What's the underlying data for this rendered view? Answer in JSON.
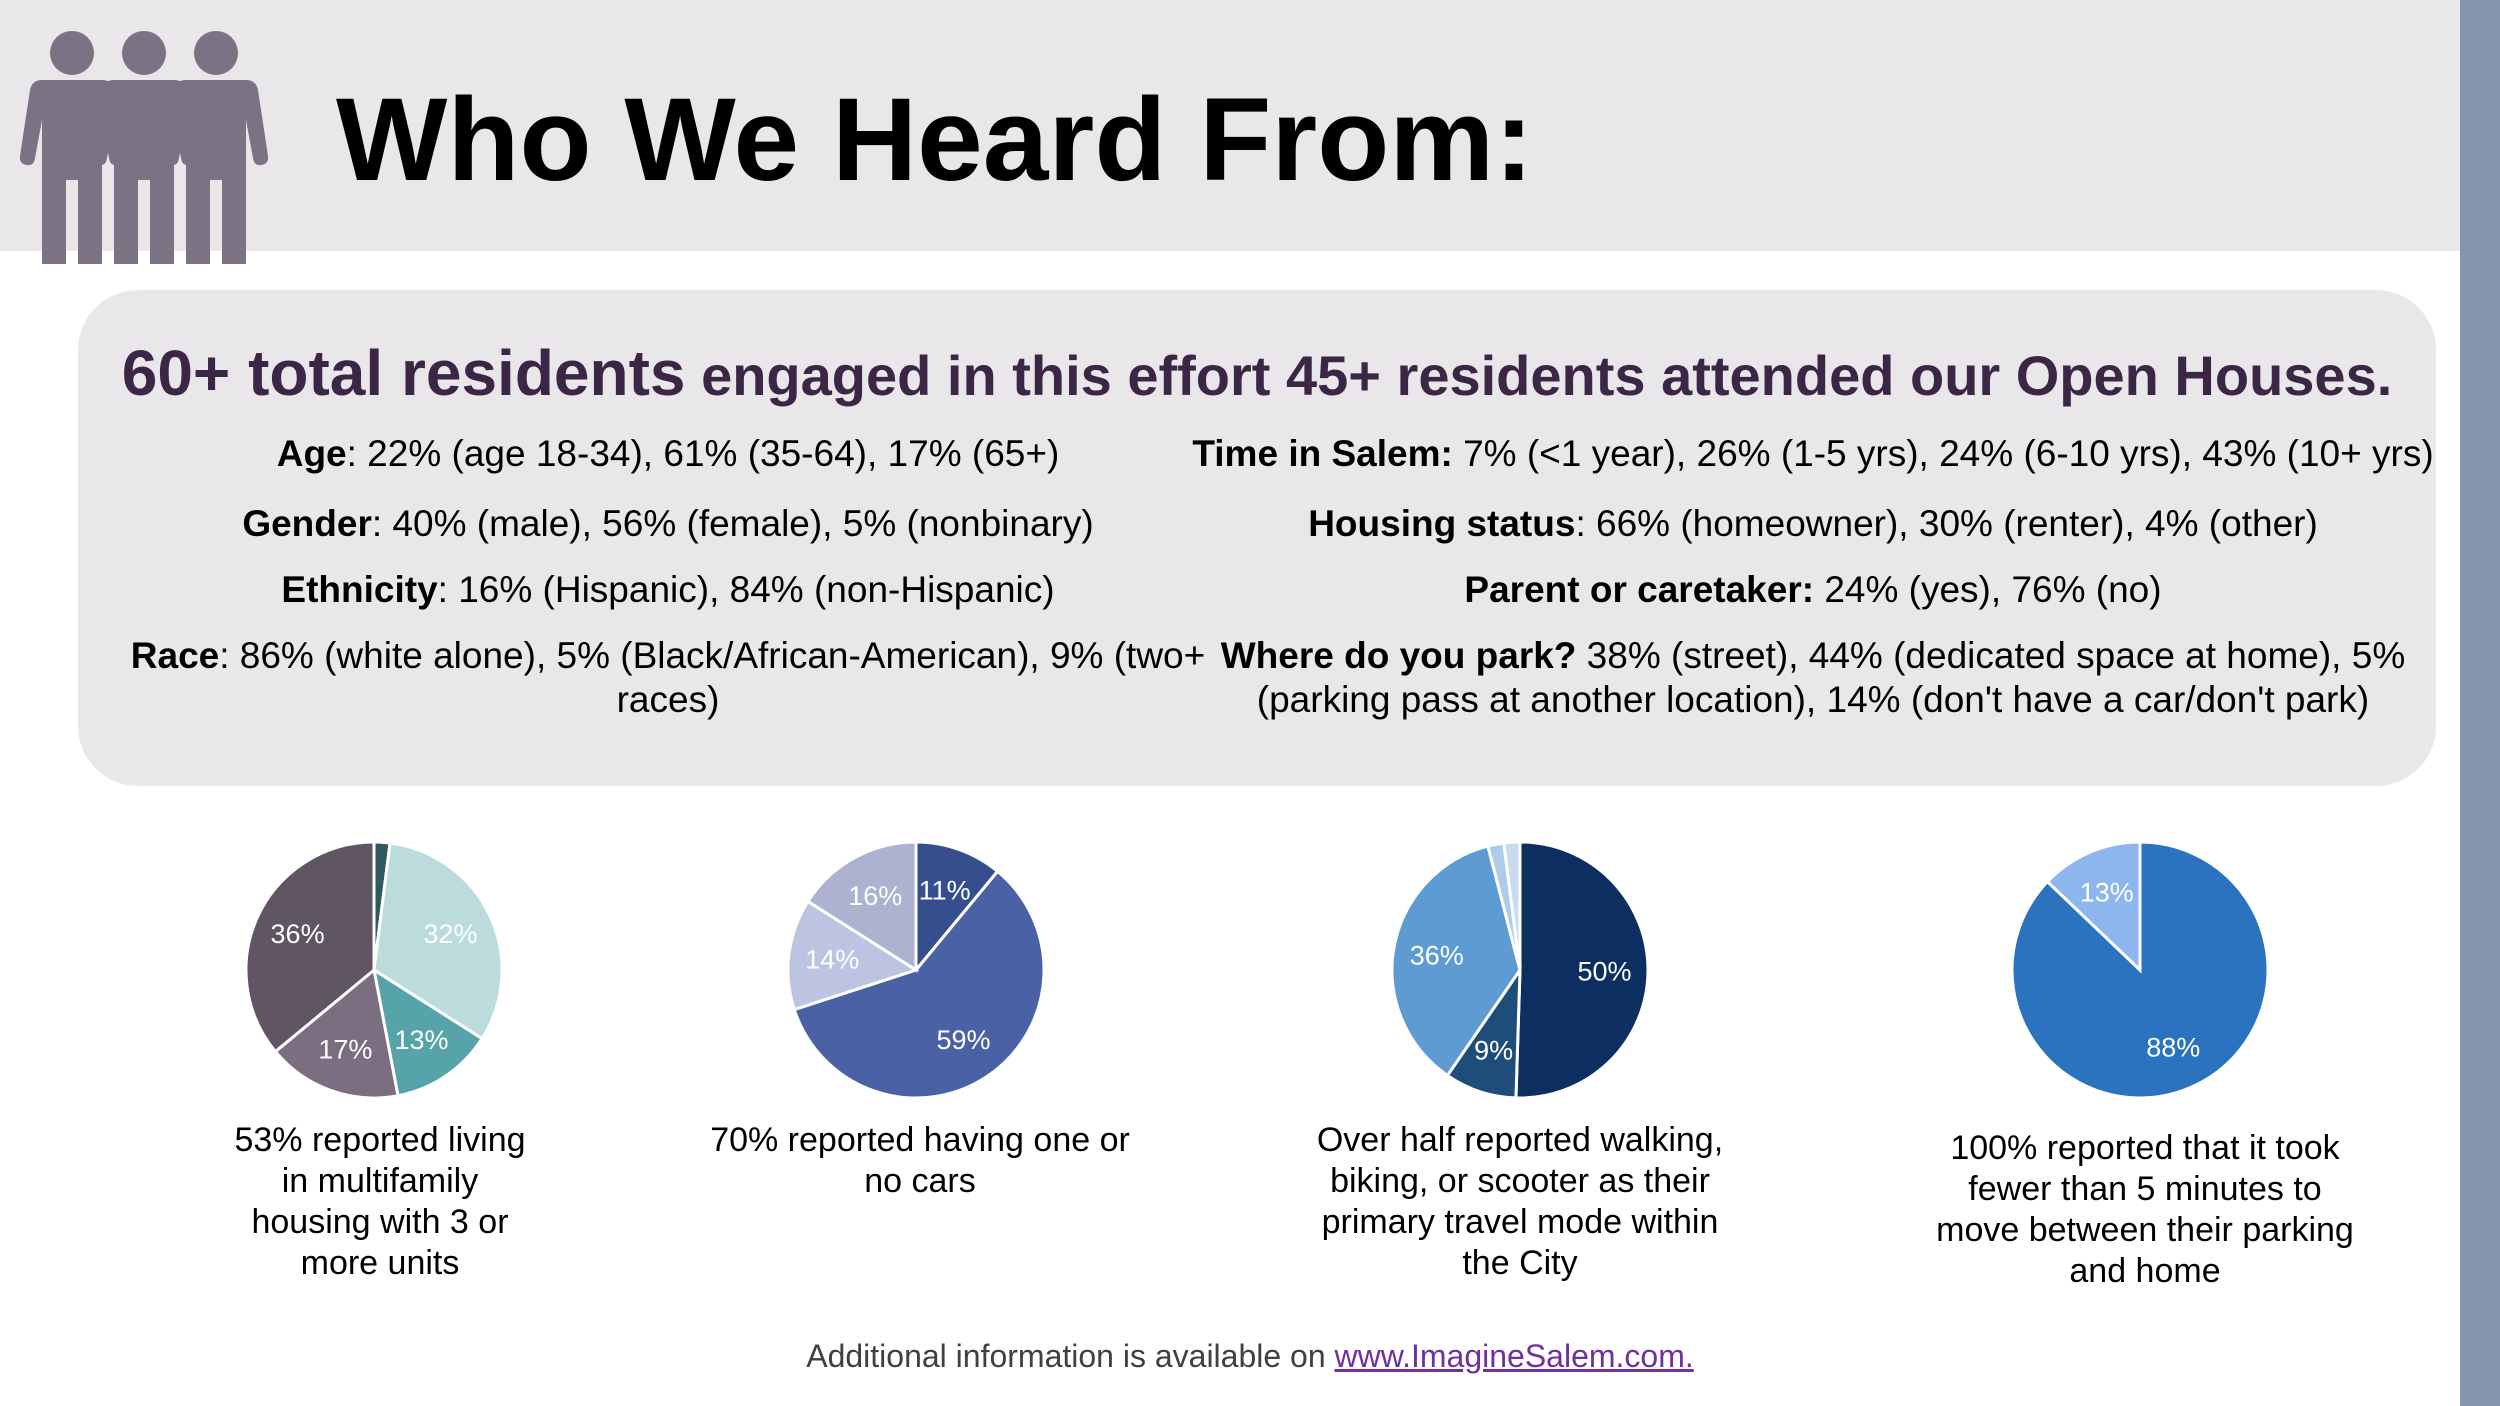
{
  "header": {
    "title": "Who We Heard From:",
    "icon": "people-group-icon",
    "icon_color": "#7b7284",
    "background": "#e9e7ea"
  },
  "panel": {
    "headline_part1": "60+ total residents",
    "headline_part2": "engaged in this effort 45+ residents attended our Open Houses.",
    "headline_color": "#3b2645",
    "left": [
      {
        "label": "Age",
        "text": ": 22% (age 18-34), 61% (35-64), 17% (65+)"
      },
      {
        "label": "Gender",
        "text": ": 40% (male), 56% (female), 5% (nonbinary)"
      },
      {
        "label": "Ethnicity",
        "text": ": 16% (Hispanic), 84% (non-Hispanic)"
      },
      {
        "label": "Race",
        "text": ": 86% (white alone), 5% (Black/African-American), 9% (two+ races)"
      }
    ],
    "right": [
      {
        "label": "Time in Salem:",
        "text": " 7% (<1 year), 26% (1-5 yrs), 24% (6-10 yrs), 43% (10+ yrs)"
      },
      {
        "label": "Housing status",
        "text": ": 66% (homeowner), 30% (renter), 4% (other)"
      },
      {
        "label": "Parent or caretaker:",
        "text": " 24% (yes), 76% (no)"
      },
      {
        "label": "Where do you park?",
        "text": " 38% (street), 44% (dedicated space at home), 5% (parking pass at another location), 14% (don't have a car/don't park)"
      }
    ]
  },
  "chart_data": [
    {
      "type": "pie",
      "values": [
        2,
        32,
        13,
        17,
        36
      ],
      "labels": [
        "",
        "32%",
        "13%",
        "17%",
        "36%"
      ],
      "colors": [
        "#2f5a5e",
        "#bcdbdd",
        "#56a3aa",
        "#7b6e80",
        "#5f5563"
      ],
      "caption": "53% reported living in multifamily housing with 3 or more units"
    },
    {
      "type": "pie",
      "values": [
        11,
        59,
        14,
        16
      ],
      "labels": [
        "11%",
        "59%",
        "14%",
        "16%"
      ],
      "colors": [
        "#364d8e",
        "#4a61a5",
        "#bcc4e2",
        "#adb2d0"
      ],
      "caption": "70% reported having one or no cars"
    },
    {
      "type": "pie",
      "values": [
        50,
        9,
        36,
        2,
        2
      ],
      "labels": [
        "50%",
        "9%",
        "36%",
        "",
        ""
      ],
      "colors": [
        "#0d2e61",
        "#1f4d7a",
        "#5e9bd3",
        "#aecbe9",
        "#c8dbf0"
      ],
      "caption": "Over half reported walking, biking, or scooter as their primary travel mode within the City"
    },
    {
      "type": "pie",
      "values": [
        88,
        13
      ],
      "labels": [
        "88%",
        "13%"
      ],
      "colors": [
        "#2c73bf",
        "#8db5ee"
      ],
      "caption": "100% reported that it took fewer than 5 minutes to move between their parking and home"
    }
  ],
  "footer": {
    "text": "Additional information is available on ",
    "link": "www.ImagineSalem.com."
  }
}
